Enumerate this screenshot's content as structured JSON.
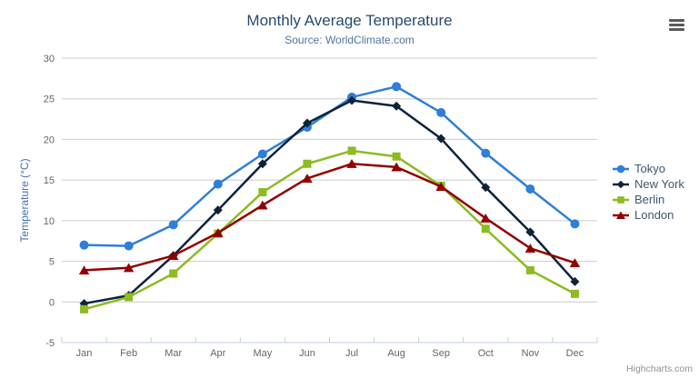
{
  "chart": {
    "title": "Monthly Average Temperature",
    "subtitle": "Source: WorldClimate.com"
  },
  "credits_label": "Highcharts.com",
  "icons": {
    "context_menu": "hamburger-icon"
  },
  "colors": {
    "title": "#274b6d",
    "subtitle": "#4d759e",
    "axis_labels": "#666666",
    "y_axis_title": "#4572a7",
    "gridline": "#cccccc",
    "axis_line": "#c0d0e0",
    "legend_text": "#3e576f",
    "credits": "#909090"
  },
  "chart_data": {
    "type": "line",
    "title": "Monthly Average Temperature",
    "subtitle": "Source: WorldClimate.com",
    "categories": [
      "Jan",
      "Feb",
      "Mar",
      "Apr",
      "May",
      "Jun",
      "Jul",
      "Aug",
      "Sep",
      "Oct",
      "Nov",
      "Dec"
    ],
    "xlabel": "",
    "ylabel": "Temperature (°C)",
    "ylim": [
      -5,
      30
    ],
    "yticks": [
      -5,
      0,
      5,
      10,
      15,
      20,
      25,
      30
    ],
    "grid": true,
    "legend_position": "right",
    "series": [
      {
        "name": "Tokyo",
        "color": "#2f7ed8",
        "marker": "circle",
        "values": [
          7.0,
          6.9,
          9.5,
          14.5,
          18.2,
          21.5,
          25.2,
          26.5,
          23.3,
          18.3,
          13.9,
          9.6
        ]
      },
      {
        "name": "New York",
        "color": "#0d233a",
        "marker": "diamond",
        "values": [
          -0.2,
          0.8,
          5.7,
          11.3,
          17.0,
          22.0,
          24.8,
          24.1,
          20.1,
          14.1,
          8.6,
          2.5
        ]
      },
      {
        "name": "Berlin",
        "color": "#8bbc21",
        "marker": "square",
        "values": [
          -0.9,
          0.6,
          3.5,
          8.4,
          13.5,
          17.0,
          18.6,
          17.9,
          14.3,
          9.0,
          3.9,
          1.0
        ]
      },
      {
        "name": "London",
        "color": "#910000",
        "marker": "triangle-up",
        "values": [
          3.9,
          4.2,
          5.7,
          8.5,
          11.9,
          15.2,
          17.0,
          16.6,
          14.2,
          10.3,
          6.6,
          4.8
        ]
      }
    ]
  }
}
